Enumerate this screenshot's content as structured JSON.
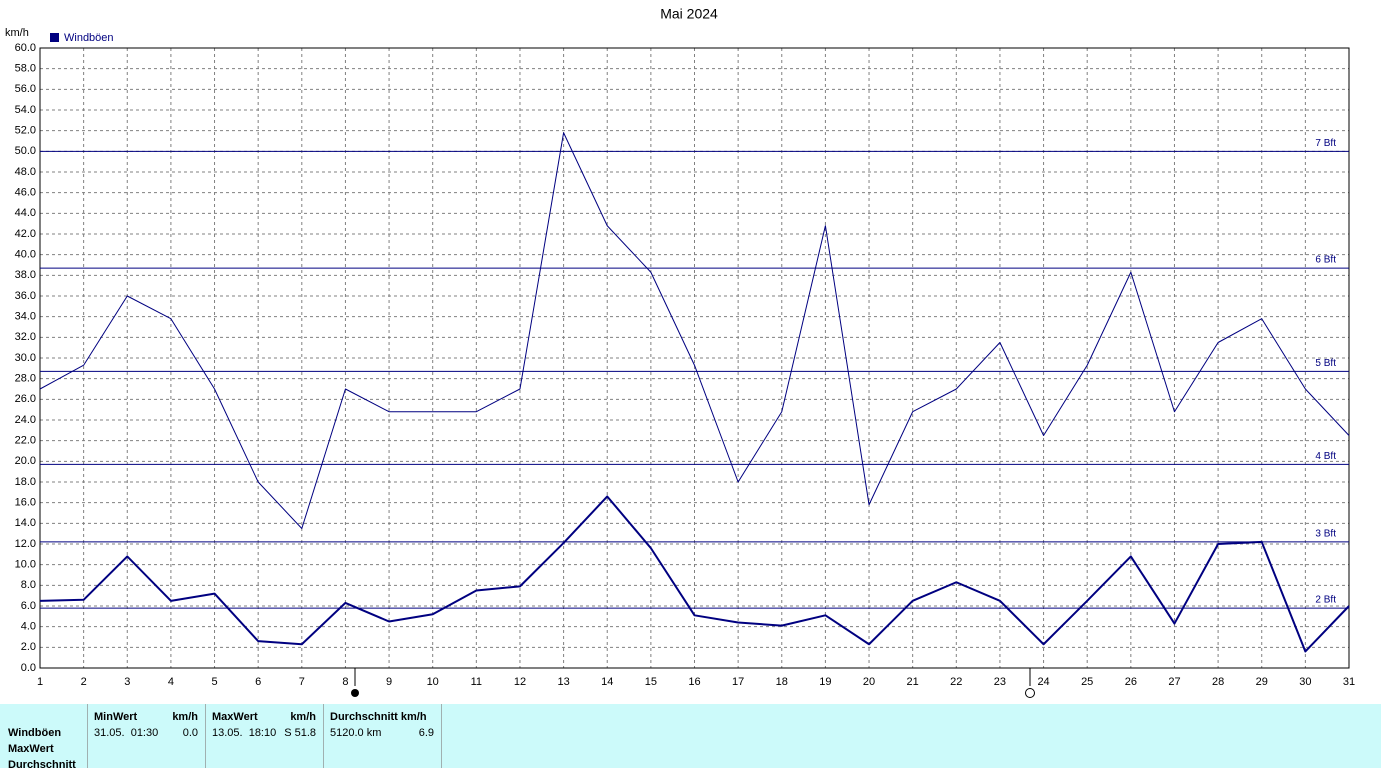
{
  "chart_data": {
    "type": "line",
    "title": "Mai 2024",
    "y_label": "km/h",
    "x": [
      1,
      2,
      3,
      4,
      5,
      6,
      7,
      8,
      9,
      10,
      11,
      12,
      13,
      14,
      15,
      16,
      17,
      18,
      19,
      20,
      21,
      22,
      23,
      24,
      25,
      26,
      27,
      28,
      29,
      30,
      31
    ],
    "xlim": [
      1,
      31
    ],
    "xticks": [
      1,
      2,
      3,
      4,
      5,
      6,
      7,
      8,
      9,
      10,
      11,
      12,
      13,
      14,
      15,
      16,
      17,
      18,
      19,
      20,
      21,
      22,
      23,
      24,
      25,
      26,
      27,
      28,
      29,
      30,
      31
    ],
    "ylim": [
      0,
      60
    ],
    "yticks": [
      {
        "value": 0,
        "label": "0.0"
      },
      {
        "value": 2,
        "label": "2.0"
      },
      {
        "value": 4,
        "label": "4.0"
      },
      {
        "value": 6,
        "label": "6.0"
      },
      {
        "value": 8,
        "label": "8.0"
      },
      {
        "value": 10,
        "label": "10.0"
      },
      {
        "value": 12,
        "label": "12.0"
      },
      {
        "value": 14,
        "label": "14.0"
      },
      {
        "value": 16,
        "label": "16.0"
      },
      {
        "value": 18,
        "label": "18.0"
      },
      {
        "value": 20,
        "label": "20.0"
      },
      {
        "value": 22,
        "label": "22.0"
      },
      {
        "value": 24,
        "label": "24.0"
      },
      {
        "value": 26,
        "label": "26.0"
      },
      {
        "value": 28,
        "label": "28.0"
      },
      {
        "value": 30,
        "label": "30.0"
      },
      {
        "value": 32,
        "label": "32.0"
      },
      {
        "value": 34,
        "label": "34.0"
      },
      {
        "value": 36,
        "label": "36.0"
      },
      {
        "value": 38,
        "label": "38.0"
      },
      {
        "value": 40,
        "label": "40.0"
      },
      {
        "value": 42,
        "label": "42.0"
      },
      {
        "value": 44,
        "label": "44.0"
      },
      {
        "value": 46,
        "label": "46.0"
      },
      {
        "value": 48,
        "label": "48.0"
      },
      {
        "value": 50,
        "label": "50.0"
      },
      {
        "value": 52,
        "label": "52.0"
      },
      {
        "value": 54,
        "label": "54.0"
      },
      {
        "value": 56,
        "label": "56.0"
      },
      {
        "value": 58,
        "label": "58.0"
      },
      {
        "value": 60,
        "label": "60.0"
      }
    ],
    "grid": true,
    "series": [
      {
        "name": "Windböen",
        "color": "#000080",
        "values": [
          27.0,
          29.3,
          36.0,
          33.8,
          27.0,
          18.0,
          13.5,
          27.0,
          24.8,
          24.8,
          24.8,
          27.0,
          51.8,
          42.8,
          38.3,
          29.3,
          18.0,
          24.8,
          42.8,
          15.8,
          24.8,
          27.0,
          31.5,
          22.5,
          29.3,
          38.3,
          24.8,
          31.5,
          33.8,
          27.0,
          22.5
        ]
      },
      {
        "color": "#000080",
        "values": [
          6.5,
          6.6,
          10.8,
          6.5,
          7.2,
          2.6,
          2.3,
          6.3,
          4.5,
          5.2,
          7.5,
          7.9,
          12.1,
          16.6,
          11.6,
          5.1,
          4.4,
          4.1,
          5.1,
          2.3,
          6.5,
          8.3,
          6.5,
          2.3,
          6.5,
          10.8,
          4.3,
          12.0,
          12.2,
          1.6,
          6.0
        ]
      }
    ],
    "reference_lines": [
      {
        "value": 5.8,
        "label": "2 Bft"
      },
      {
        "value": 12.2,
        "label": "3 Bft"
      },
      {
        "value": 19.7,
        "label": "4 Bft"
      },
      {
        "value": 28.7,
        "label": "5 Bft"
      },
      {
        "value": 38.7,
        "label": "6 Bft"
      },
      {
        "value": 50.0,
        "label": "7 Bft"
      }
    ]
  },
  "table": {
    "row_labels": [
      "Windböen",
      "MaxWert",
      "Durchschnitt"
    ],
    "columns": [
      {
        "header": "MinWert",
        "unit": "km/h",
        "when": "31.05.  01:30",
        "value": "0.0"
      },
      {
        "header": "MaxWert",
        "unit": "km/h",
        "when": "13.05.  18:10",
        "value": "S 51.8"
      },
      {
        "header": "Durchschnitt km/h",
        "when": "5120.0 km",
        "value": "6.9"
      }
    ]
  }
}
